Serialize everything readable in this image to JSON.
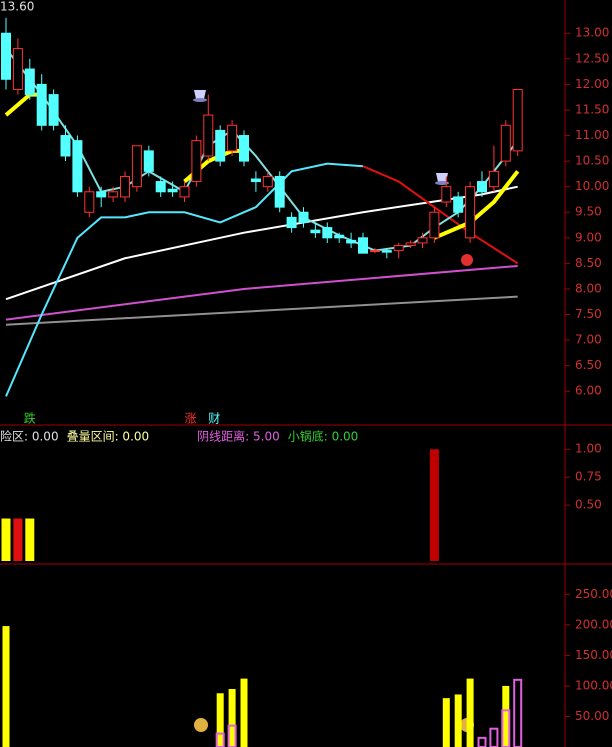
{
  "chart_data": [
    {
      "type": "candlestick",
      "title": "13.60",
      "up_color": "#ff3232",
      "down_color": "#54ffff",
      "ylim": [
        5.34,
        13.65
      ],
      "yticks": [
        {
          "value": 6.0,
          "label": "6.00"
        },
        {
          "value": 6.5,
          "label": "6.50"
        },
        {
          "value": 7.0,
          "label": "7.00"
        },
        {
          "value": 7.5,
          "label": "7.50"
        },
        {
          "value": 8.0,
          "label": "8.00"
        },
        {
          "value": 8.5,
          "label": "8.50"
        },
        {
          "value": 9.0,
          "label": "9.00"
        },
        {
          "value": 9.5,
          "label": "9.50"
        },
        {
          "value": 10.0,
          "label": "10.00"
        },
        {
          "value": 10.5,
          "label": "10.50"
        },
        {
          "value": 11.0,
          "label": "11.00"
        },
        {
          "value": 11.5,
          "label": "11.50"
        },
        {
          "value": 12.0,
          "label": "12.00"
        },
        {
          "value": 12.5,
          "label": "12.50"
        },
        {
          "value": 13.0,
          "label": "13.00"
        }
      ],
      "open": [
        13.0,
        11.9,
        12.3,
        12.0,
        11.8,
        11.0,
        10.9,
        9.5,
        9.9,
        9.8,
        9.8,
        10.0,
        10.7,
        10.1,
        9.95,
        9.8,
        10.1,
        10.6,
        11.1,
        10.7,
        11.0,
        10.15,
        10.0,
        10.2,
        9.4,
        9.5,
        9.15,
        9.2,
        9.05,
        8.95,
        9.0,
        8.75,
        8.75,
        8.75,
        8.85,
        8.9,
        9.0,
        9.7,
        9.8,
        9.0,
        10.1,
        10.0,
        10.5,
        10.7
      ],
      "close": [
        12.1,
        12.7,
        11.8,
        11.2,
        11.2,
        10.6,
        9.9,
        9.9,
        9.8,
        9.9,
        10.2,
        10.8,
        10.3,
        9.9,
        9.9,
        10.0,
        10.9,
        11.4,
        10.5,
        11.2,
        10.5,
        10.1,
        10.2,
        9.6,
        9.2,
        9.3,
        9.1,
        9.0,
        9.0,
        8.9,
        8.7,
        8.75,
        8.72,
        8.85,
        8.9,
        9.0,
        9.5,
        10.0,
        9.5,
        10.0,
        9.9,
        10.3,
        11.2,
        11.9
      ],
      "high": [
        13.3,
        12.9,
        12.5,
        12.2,
        11.9,
        11.2,
        11.0,
        10.0,
        10.0,
        10.0,
        10.3,
        10.8,
        10.8,
        10.2,
        10.1,
        10.1,
        11.0,
        11.8,
        11.2,
        11.3,
        11.1,
        10.3,
        10.3,
        10.3,
        9.5,
        9.6,
        9.3,
        9.3,
        9.1,
        9.1,
        9.1,
        8.8,
        8.8,
        8.9,
        8.95,
        9.1,
        9.6,
        10.2,
        9.9,
        10.1,
        10.3,
        10.8,
        11.3,
        11.9
      ],
      "low": [
        11.9,
        11.8,
        11.7,
        11.1,
        11.1,
        10.5,
        9.8,
        9.4,
        9.6,
        9.7,
        9.7,
        9.9,
        10.2,
        9.8,
        9.8,
        9.7,
        10.0,
        10.5,
        10.4,
        10.6,
        10.4,
        9.9,
        9.9,
        9.5,
        9.1,
        9.2,
        9.0,
        8.9,
        8.9,
        8.8,
        8.7,
        8.7,
        8.6,
        8.6,
        8.8,
        8.8,
        8.9,
        9.6,
        9.4,
        8.9,
        9.8,
        9.9,
        10.4,
        10.6
      ],
      "lines": [
        {
          "color": "#ffffff",
          "x": [
            0,
            10,
            20,
            30,
            40,
            43
          ],
          "values": [
            7.8,
            8.6,
            9.1,
            9.5,
            9.85,
            10.0
          ]
        },
        {
          "color": "#d050d0",
          "x": [
            0,
            20,
            43
          ],
          "values": [
            7.4,
            8.0,
            8.45
          ]
        },
        {
          "color": "#909090",
          "x": [
            0,
            43
          ],
          "values": [
            7.3,
            7.85
          ]
        },
        {
          "color": "#54e8ff",
          "x": [
            0,
            3,
            6,
            8,
            10,
            12,
            15,
            18,
            21,
            24,
            27,
            30
          ],
          "values": [
            5.9,
            7.5,
            9.0,
            9.4,
            9.4,
            9.5,
            9.5,
            9.3,
            9.6,
            10.3,
            10.45,
            10.4
          ]
        },
        {
          "color": "#e01010",
          "x": [
            30,
            33,
            36,
            39,
            43
          ],
          "values": [
            10.4,
            10.1,
            9.6,
            9.1,
            8.5
          ]
        },
        {
          "color": "#80e0e0",
          "x": [
            0,
            3,
            6,
            8,
            10,
            12,
            15,
            17,
            19,
            21,
            23,
            25,
            28,
            31,
            34,
            36,
            38,
            40,
            43
          ],
          "values": [
            12.7,
            11.8,
            10.8,
            9.9,
            10.0,
            10.3,
            9.9,
            10.8,
            11.1,
            10.6,
            10.0,
            9.4,
            9.05,
            8.75,
            8.85,
            9.2,
            9.5,
            10.0,
            10.9
          ]
        },
        {
          "color": "#ffff00",
          "x": [
            0,
            2,
            3,
            4,
            15,
            17,
            19,
            20,
            21,
            36,
            39,
            41,
            43
          ],
          "values": [
            11.4,
            11.8,
            11.8,
            null,
            10.1,
            10.5,
            10.7,
            10.7,
            null,
            9.0,
            9.3,
            9.7,
            10.3
          ]
        }
      ],
      "signals": [
        {
          "text": "跌",
          "x": 2,
          "color": "#30d030"
        },
        {
          "text": "涨",
          "x": 15.5,
          "color": "#ff3232"
        },
        {
          "text": "财",
          "x": 17.5,
          "color": "#54ffff"
        }
      ]
    },
    {
      "type": "bar",
      "legend": [
        {
          "text": "险区: 0.00",
          "color": "#e0e0e0"
        },
        {
          "text": "叠量区间: 0.00",
          "color": "#ffffa0"
        },
        {
          "text": "阴线距离: 5.00",
          "color": "#e060e0"
        },
        {
          "text": "小锅底: 0.00",
          "color": "#30d030"
        }
      ],
      "ylim": [
        0,
        1.19
      ],
      "yticks": [
        {
          "value": 0.5,
          "label": "0.50"
        },
        {
          "value": 0.75,
          "label": "0.75"
        },
        {
          "value": 1.0,
          "label": "1.00"
        }
      ],
      "x": [
        0,
        1,
        2,
        36
      ],
      "values": [
        0.38,
        0.38,
        0.38,
        1.0
      ],
      "colors": [
        "#ffff00",
        "#e01010",
        "#ffff00",
        "#c00000"
      ]
    },
    {
      "type": "bar",
      "ylim": [
        0,
        298
      ],
      "yticks": [
        {
          "value": 50,
          "label": "50.00"
        },
        {
          "value": 100,
          "label": "100.00"
        },
        {
          "value": 150,
          "label": "150.00"
        },
        {
          "value": 200,
          "label": "200.00"
        },
        {
          "value": 250,
          "label": "250.00"
        }
      ],
      "series": [
        {
          "color": "#ffff00",
          "x": [
            0,
            18,
            19,
            20,
            37,
            38,
            39,
            42
          ],
          "values": [
            198,
            88,
            95,
            112,
            80,
            86,
            112,
            100
          ]
        },
        {
          "color": "#e060e0",
          "outline": true,
          "x": [
            18,
            19,
            40,
            41,
            42,
            43
          ],
          "values": [
            22,
            35,
            15,
            30,
            60,
            110
          ]
        }
      ]
    }
  ]
}
